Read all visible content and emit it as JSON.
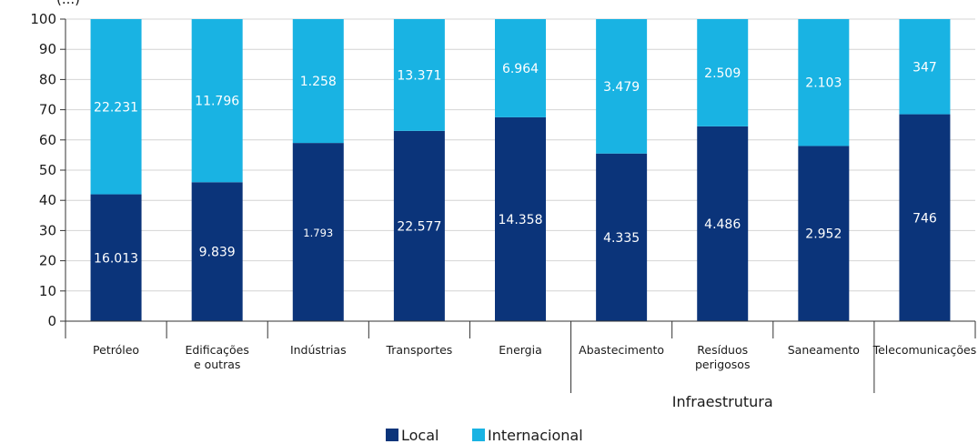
{
  "chart_data": {
    "type": "bar",
    "stacked": true,
    "normalized_percent": true,
    "ylim": [
      0,
      100
    ],
    "yticks": [
      0,
      10,
      20,
      30,
      40,
      50,
      60,
      70,
      80,
      90,
      100
    ],
    "grid": true,
    "legend_position": "bottom-center",
    "top_label_fragment": "(...)",
    "categories": [
      [
        "Petróleo"
      ],
      [
        "Edificações",
        "e outras"
      ],
      [
        "Indústrias"
      ],
      [
        "Transportes"
      ],
      [
        "Energia"
      ],
      [
        "Abastecimento"
      ],
      [
        "Resíduos",
        "perigosos"
      ],
      [
        "Saneamento"
      ],
      [
        "Telecomunicações"
      ]
    ],
    "series": [
      {
        "name": "Local",
        "color": "#0b347a",
        "percent": [
          42,
          46,
          59,
          63,
          67.5,
          55.5,
          64.5,
          58,
          68.5
        ],
        "labels": [
          "16.013",
          "9.839",
          "1.793",
          "22.577",
          "14.358",
          "4.335",
          "4.486",
          "2.952",
          "746"
        ]
      },
      {
        "name": "Internacional",
        "color": "#19b3e3",
        "percent": [
          58,
          54,
          41,
          37,
          32.5,
          44.5,
          35.5,
          42,
          31.5
        ],
        "labels": [
          "22.231",
          "11.796",
          "1.258",
          "13.371",
          "6.964",
          "3.479",
          "2.509",
          "2.103",
          "347"
        ]
      }
    ],
    "group": {
      "label": "Infraestrutura",
      "start_index": 5,
      "end_index": 7
    }
  }
}
